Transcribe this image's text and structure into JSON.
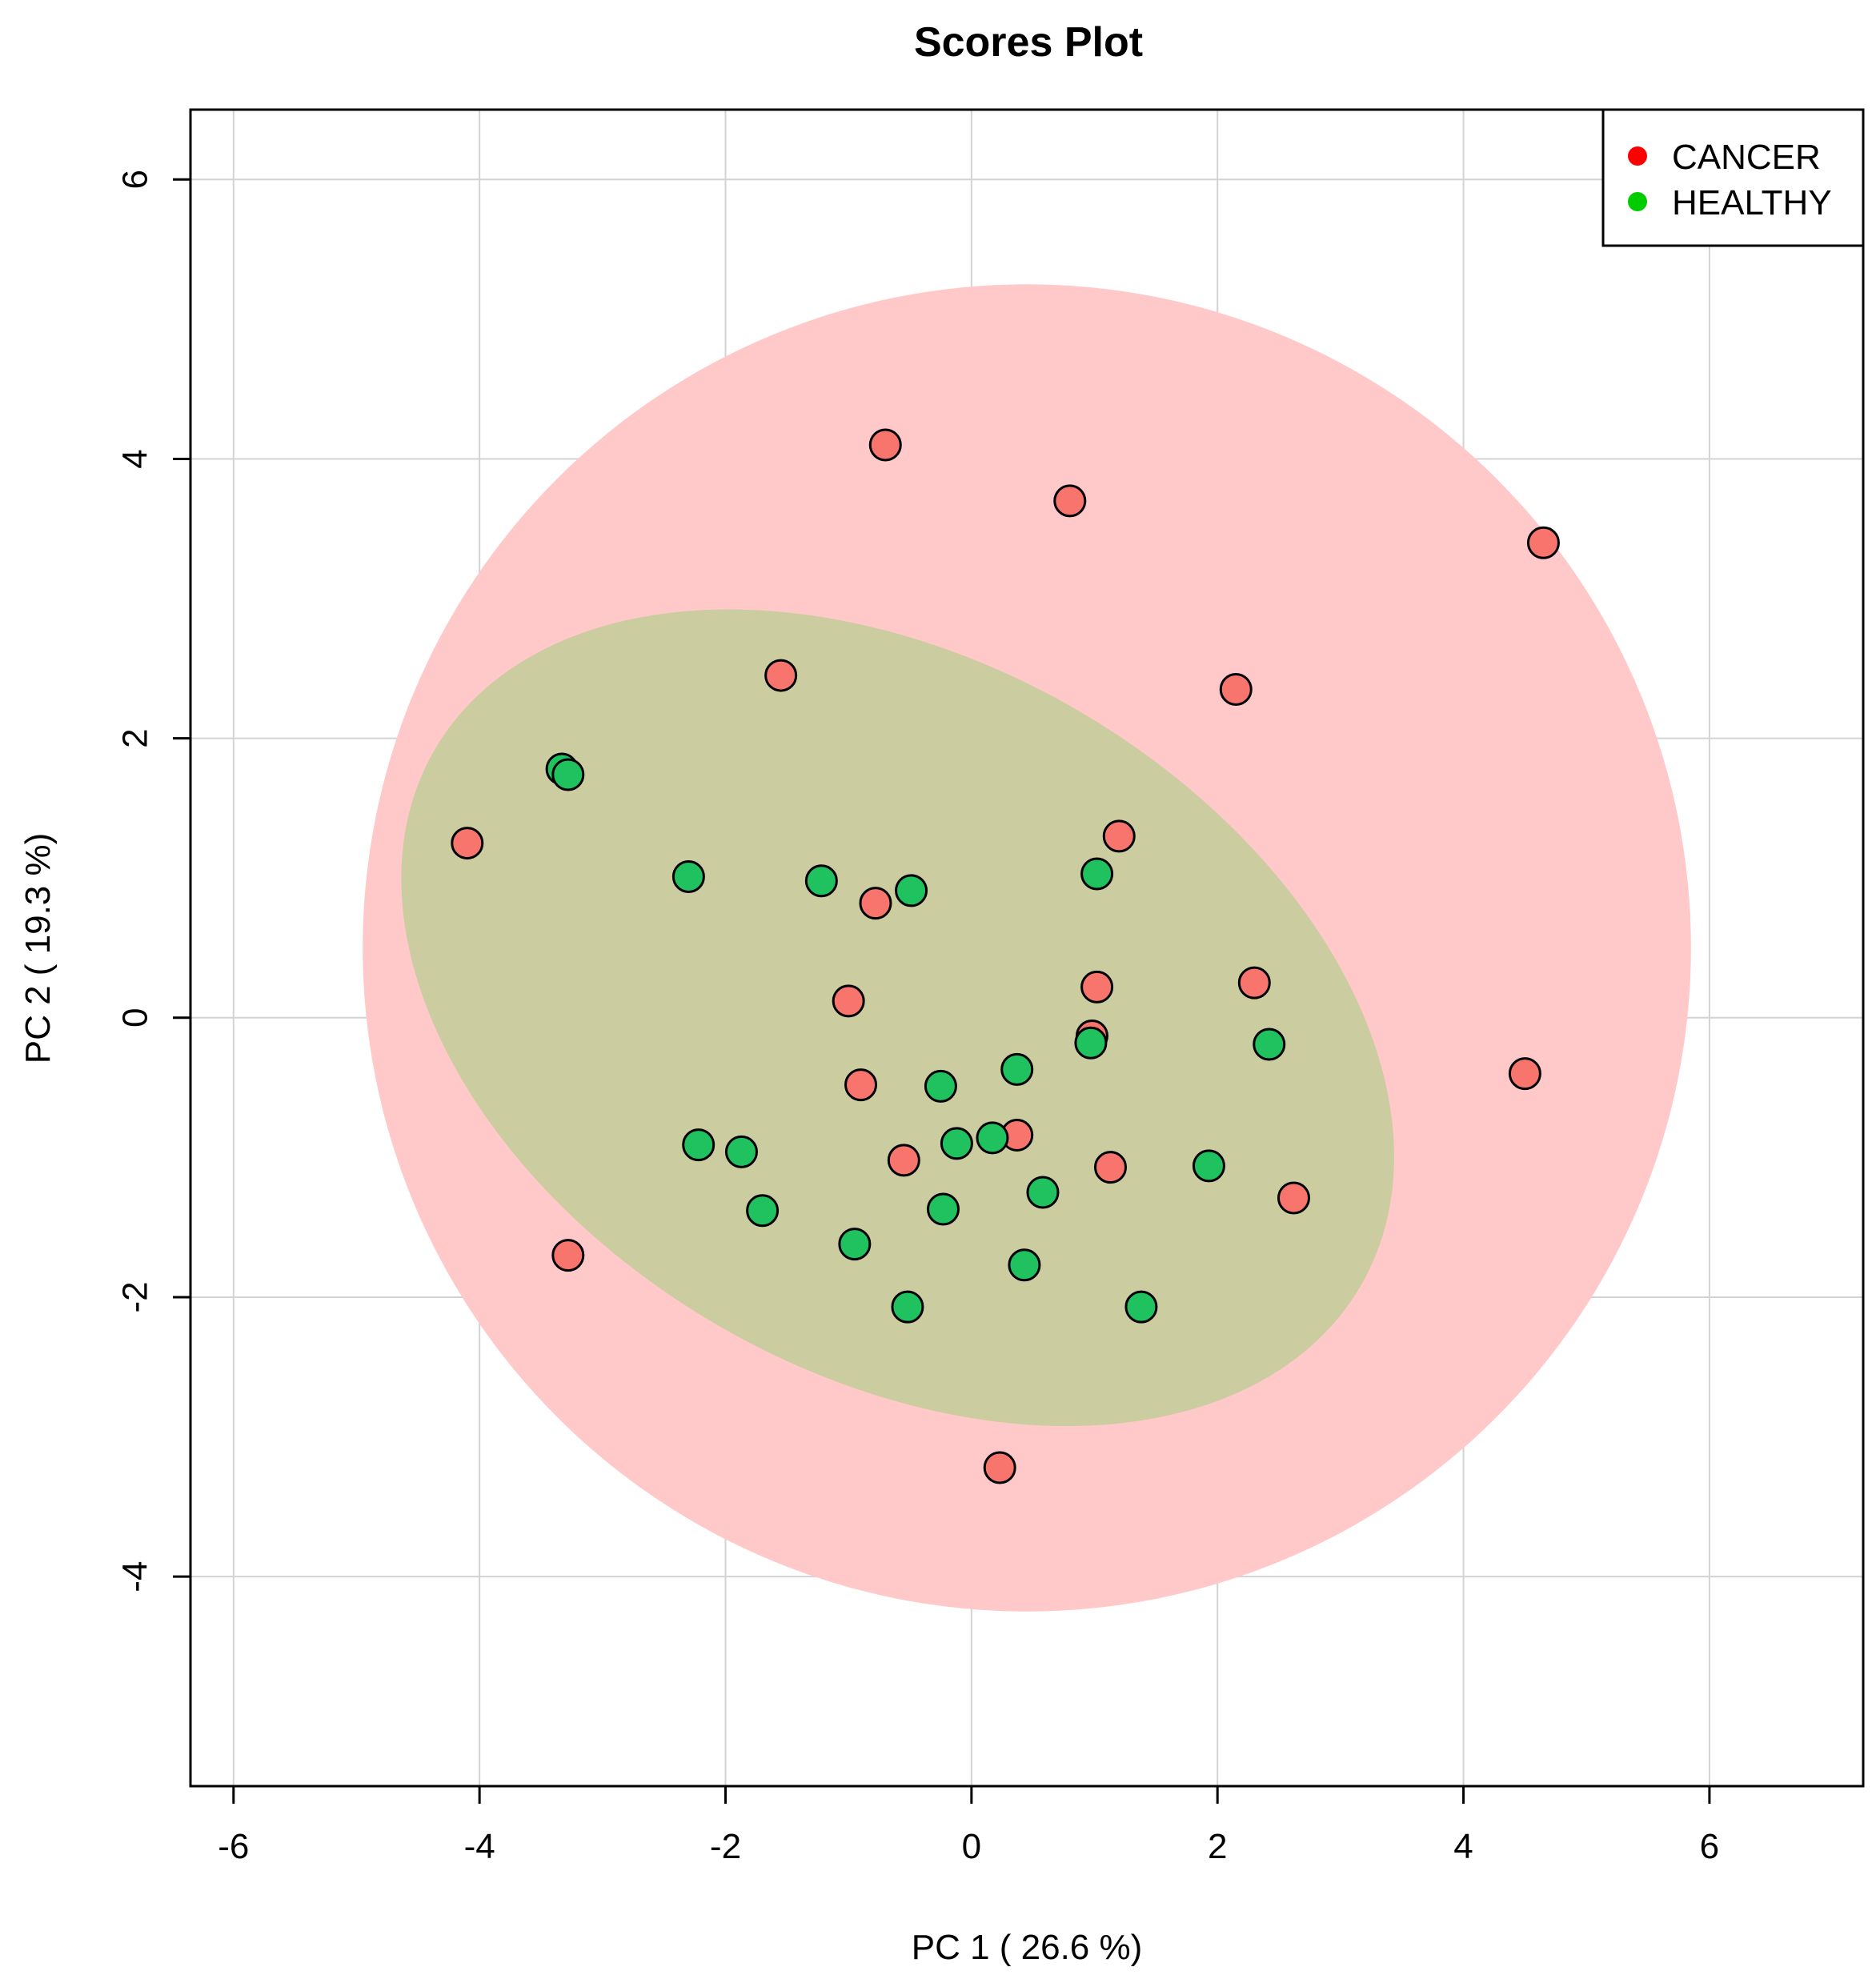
{
  "chart_data": {
    "type": "scatter",
    "title": "Scores Plot",
    "xlabel": "PC 1 ( 26.6 %)",
    "ylabel": "PC 2 ( 19.3 %)",
    "xlim": [
      -6.35,
      7.25
    ],
    "ylim": [
      -5.5,
      6.5
    ],
    "xticks": [
      -6,
      -4,
      -2,
      0,
      2,
      4,
      6
    ],
    "yticks": [
      -4,
      -2,
      0,
      2,
      4,
      6
    ],
    "xtick_labels": [
      "-6",
      "-4",
      "-2",
      "0",
      "2",
      "4",
      "6"
    ],
    "ytick_labels": [
      "-4",
      "-2",
      "0",
      "2",
      "4",
      "6"
    ],
    "grid": true,
    "legend": {
      "position": "top-right",
      "entries": [
        {
          "label": "CANCER",
          "color": "#ff0000"
        },
        {
          "label": "HEALTHY",
          "color": "#00cc00"
        }
      ]
    },
    "ellipses": [
      {
        "group": "CANCER",
        "center": [
          0.45,
          0.5
        ],
        "semi_axes": [
          5.4,
          4.75
        ],
        "angle_deg": 0,
        "color": "#ffc9c9"
      },
      {
        "group": "HEALTHY",
        "center": [
          -0.6,
          0.0
        ],
        "semi_axes": [
          4.35,
          2.55
        ],
        "angle_deg": -30,
        "color": "#cbcc9f"
      }
    ],
    "series": [
      {
        "name": "CANCER",
        "fill": "#f8756d",
        "points": [
          [
            -0.7,
            4.1
          ],
          [
            0.8,
            3.7
          ],
          [
            4.65,
            3.4
          ],
          [
            -1.55,
            2.45
          ],
          [
            2.15,
            2.35
          ],
          [
            -4.1,
            1.25
          ],
          [
            1.2,
            1.3
          ],
          [
            -0.78,
            0.82
          ],
          [
            -1.0,
            0.12
          ],
          [
            1.02,
            0.22
          ],
          [
            2.3,
            0.25
          ],
          [
            0.98,
            -0.13
          ],
          [
            4.5,
            -0.4
          ],
          [
            -0.9,
            -0.48
          ],
          [
            0.37,
            -0.84
          ],
          [
            -0.55,
            -1.02
          ],
          [
            1.13,
            -1.07
          ],
          [
            2.62,
            -1.29
          ],
          [
            -3.28,
            -1.7
          ],
          [
            0.23,
            -3.22
          ]
        ]
      },
      {
        "name": "HEALTHY",
        "fill": "#1fc25f",
        "points": [
          [
            -3.33,
            1.78
          ],
          [
            -3.28,
            1.74
          ],
          [
            -2.3,
            1.01
          ],
          [
            -1.22,
            0.98
          ],
          [
            -0.49,
            0.91
          ],
          [
            1.02,
            1.03
          ],
          [
            0.97,
            -0.18
          ],
          [
            0.37,
            -0.37
          ],
          [
            2.42,
            -0.19
          ],
          [
            -0.25,
            -0.49
          ],
          [
            -2.22,
            -0.91
          ],
          [
            -1.87,
            -0.96
          ],
          [
            -0.12,
            -0.9
          ],
          [
            0.17,
            -0.86
          ],
          [
            1.93,
            -1.06
          ],
          [
            -1.7,
            -1.38
          ],
          [
            -0.23,
            -1.37
          ],
          [
            0.58,
            -1.25
          ],
          [
            -0.95,
            -1.62
          ],
          [
            0.43,
            -1.77
          ],
          [
            -0.52,
            -2.07
          ],
          [
            1.38,
            -2.07
          ]
        ]
      }
    ]
  }
}
